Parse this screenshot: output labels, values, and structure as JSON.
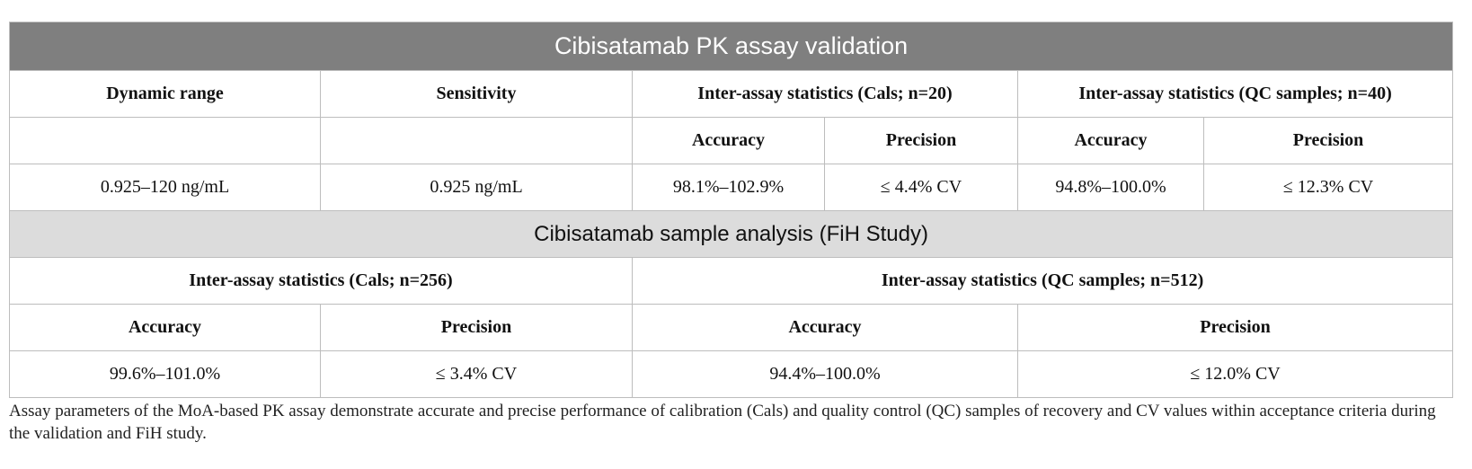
{
  "validation": {
    "title": "Cibisatamab PK assay validation",
    "headers": {
      "dynamic_range": "Dynamic range",
      "sensitivity": "Sensitivity",
      "inter_cals": "Inter-assay statistics (Cals; n=20)",
      "inter_qc": "Inter-assay statistics (QC samples; n=40)"
    },
    "subheaders": {
      "cals_accuracy": "Accuracy",
      "cals_precision": "Precision",
      "qc_accuracy": "Accuracy",
      "qc_precision": "Precision"
    },
    "values": {
      "dynamic_range": "0.925–120 ng/mL",
      "sensitivity": "0.925 ng/mL",
      "cals_accuracy": "98.1%–102.9%",
      "cals_precision": "≤ 4.4% CV",
      "qc_accuracy": "94.8%–100.0%",
      "qc_precision": "≤ 12.3% CV"
    }
  },
  "analysis": {
    "title": "Cibisatamab sample analysis (FiH Study)",
    "headers": {
      "inter_cals": "Inter-assay statistics (Cals; n=256)",
      "inter_qc": "Inter-assay statistics (QC samples; n=512)"
    },
    "subheaders": {
      "cals_accuracy": "Accuracy",
      "cals_precision": "Precision",
      "qc_accuracy": "Accuracy",
      "qc_precision": "Precision"
    },
    "values": {
      "cals_accuracy": "99.6%–101.0%",
      "cals_precision": "≤ 3.4% CV",
      "qc_accuracy": "94.4%–100.0%",
      "qc_precision": "≤ 12.0% CV"
    }
  },
  "caption": "Assay parameters of the MoA-based PK assay demonstrate accurate and precise performance of calibration (Cals) and quality control (QC) samples of recovery and CV values within acceptance criteria during the validation and FiH study."
}
